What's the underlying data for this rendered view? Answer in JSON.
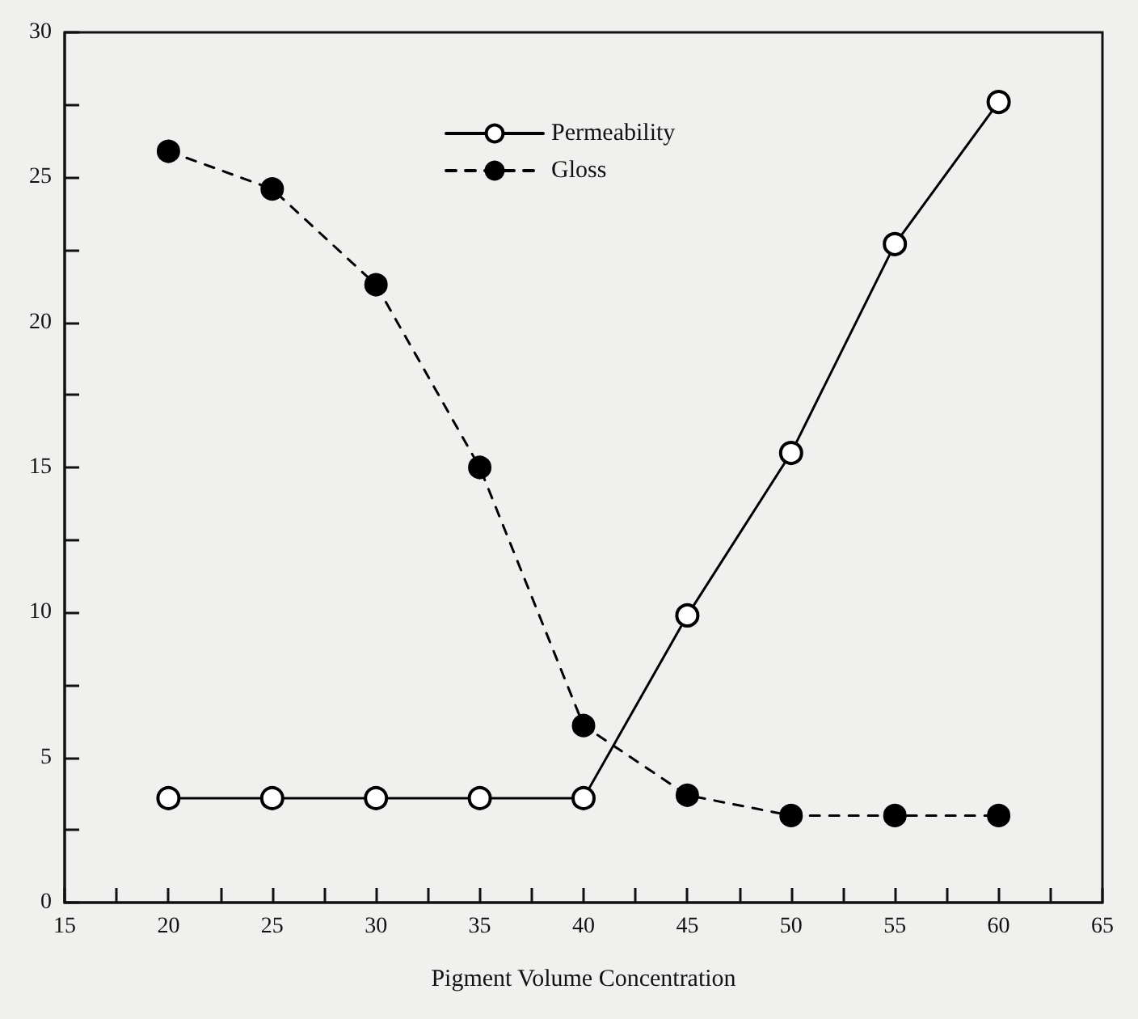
{
  "chart_data": {
    "type": "line",
    "xlabel": "Pigment Volume Concentration",
    "x": [
      20,
      25,
      30,
      35,
      40,
      45,
      50,
      55,
      60
    ],
    "series": [
      {
        "name": "Permeability",
        "color": "#000000",
        "line_style": "solid",
        "marker": "circle",
        "values": [
          3.6,
          3.6,
          3.6,
          3.6,
          3.6,
          9.9,
          15.5,
          22.7,
          27.6
        ]
      },
      {
        "name": "Gloss",
        "color": "#000000",
        "line_style": "dashed",
        "marker": "circle",
        "values": [
          25.9,
          24.6,
          21.3,
          15.0,
          6.1,
          3.7,
          3.0,
          3.0,
          3.0
        ]
      }
    ],
    "xlim": [
      15,
      65
    ],
    "ylim": [
      0,
      30
    ],
    "xticks": [
      15,
      {
        "value": 17.5,
        "label": null
      },
      20,
      {
        "value": 22.5,
        "label": null
      },
      25,
      {
        "value": 27.5,
        "label": null
      },
      30,
      {
        "value": 32.5,
        "label": null
      },
      35,
      {
        "value": 37.5,
        "label": null
      },
      40,
      {
        "value": 42.5,
        "label": null
      },
      45,
      {
        "value": 47.5,
        "label": null
      },
      50,
      {
        "value": 52.5,
        "label": null
      },
      55,
      {
        "value": 57.5,
        "label": null
      },
      60,
      {
        "value": 62.5,
        "label": null
      },
      65
    ],
    "yticks": [
      0,
      {
        "value": 2.5,
        "label": null
      },
      5,
      {
        "value": 7.5,
        "label": null
      },
      10,
      {
        "value": 12.5,
        "label": null
      },
      15,
      {
        "value": 17.5,
        "label": null
      },
      20,
      {
        "value": 22.5,
        "label": null
      },
      25,
      {
        "value": 27.5,
        "label": null
      },
      30
    ],
    "grid": false,
    "legend": "top"
  }
}
